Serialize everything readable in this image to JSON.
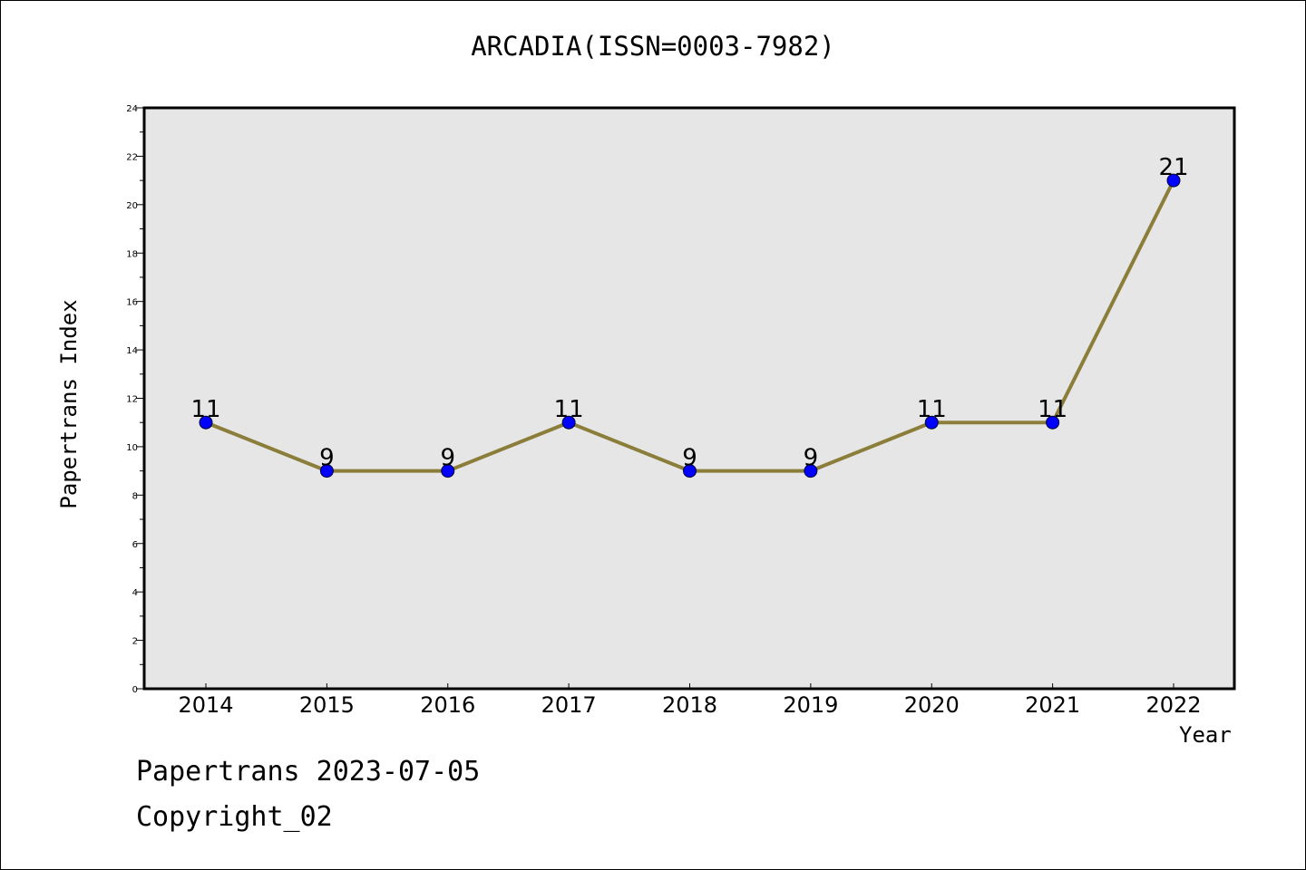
{
  "colors": {
    "plot_background": "#e6e6e6",
    "line": "#8b7d3a",
    "marker": "#0000ff"
  },
  "chart_data": {
    "type": "line",
    "title": "ARCADIA(ISSN=0003-7982)",
    "xlabel": "Year",
    "ylabel": "Papertrans Index",
    "categories": [
      "2014",
      "2015",
      "2016",
      "2017",
      "2018",
      "2019",
      "2020",
      "2021",
      "2022"
    ],
    "series": [
      {
        "values": [
          11,
          9,
          9,
          11,
          9,
          9,
          11,
          11,
          21
        ]
      }
    ],
    "ylim": [
      0,
      24
    ],
    "yticks": [
      0,
      2,
      4,
      6,
      8,
      10,
      12,
      14,
      16,
      18,
      20,
      22,
      24
    ],
    "data_labels": [
      "11",
      "9",
      "9",
      "11",
      "9",
      "9",
      "11",
      "11",
      "21"
    ],
    "grid": false,
    "legend": "none"
  },
  "footer": {
    "line1": "Papertrans 2023-07-05",
    "line2": "Copyright_02"
  }
}
